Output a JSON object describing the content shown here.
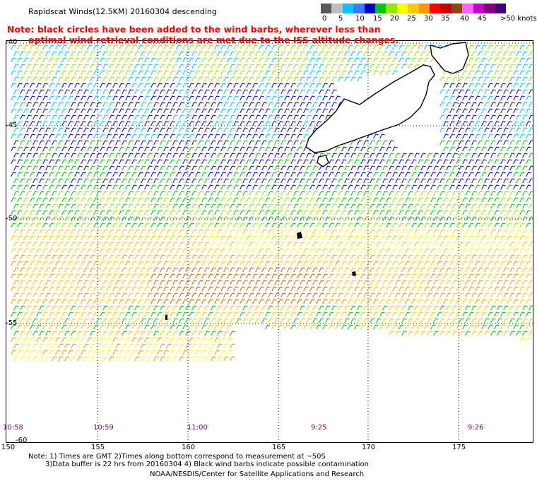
{
  "title": "Rapidscat Winds(12.5KM) 20160304 descending",
  "note_lines": [
    "Note: black circles have been added to the wind barbs, wherever less than",
    "optimal wind retrieval conditions are met due to the ISS altitude changes."
  ],
  "colorbar": {
    "unit_label": "knots",
    "labels": [
      "0",
      "5",
      "10",
      "15",
      "20",
      "25",
      "30",
      "35",
      "40",
      "45",
      ">50 knots"
    ],
    "colors": [
      "#5a5a5a",
      "#bdbdbd",
      "#00c8ff",
      "#3c78ff",
      "#0000c8",
      "#00c800",
      "#96e600",
      "#ffff00",
      "#ffc800",
      "#ff9600",
      "#ff0000",
      "#c80000",
      "#8b4513",
      "#ff64ff",
      "#c800c8",
      "#800080",
      "#400080"
    ]
  },
  "lat_labels": [
    "-40",
    "-45",
    "-50",
    "-55",
    "-60"
  ],
  "lon_labels": [
    "150",
    "155",
    "160",
    "165",
    "170",
    "175"
  ],
  "time_labels": [
    "10:58",
    "10:59",
    "11:00",
    "9:25",
    "9:26"
  ],
  "footer": {
    "line1": "Note: 1) Times are GMT 2)Times along bottom correspond to measurement at ~50S",
    "line2": "3)Data buffer is 22 hrs from 20160304 4) Black wind barbs indicate possible contamination",
    "credit": "NOAA/NESDIS/Center for Satellite Applications and Research"
  }
}
